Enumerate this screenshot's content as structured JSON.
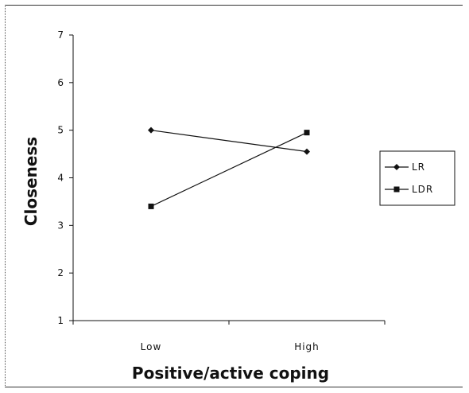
{
  "chart_data": {
    "type": "line",
    "categories": [
      "Low",
      "High"
    ],
    "series": [
      {
        "name": "LR",
        "marker": "diamond",
        "values": [
          5.0,
          4.55
        ]
      },
      {
        "name": "LDR",
        "marker": "square",
        "values": [
          3.4,
          4.95
        ]
      }
    ],
    "xlabel": "Positive/active coping",
    "ylabel": "Closeness",
    "ylim": [
      1,
      7
    ],
    "yticks": [
      1,
      2,
      3,
      4,
      5,
      6,
      7
    ],
    "grid": false,
    "legend_position": "right"
  }
}
